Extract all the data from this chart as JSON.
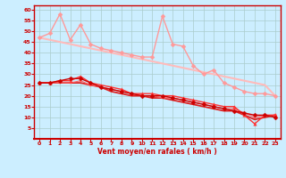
{
  "title": "",
  "xlabel": "Vent moyen/en rafales ( km/h )",
  "ylabel": "",
  "bg_color": "#cceeff",
  "grid_color": "#aacccc",
  "xlim": [
    -0.5,
    23.5
  ],
  "ylim": [
    0,
    62
  ],
  "yticks": [
    5,
    10,
    15,
    20,
    25,
    30,
    35,
    40,
    45,
    50,
    55,
    60
  ],
  "xticks": [
    0,
    1,
    2,
    3,
    4,
    5,
    6,
    7,
    8,
    9,
    10,
    11,
    12,
    13,
    14,
    15,
    16,
    17,
    18,
    19,
    20,
    21,
    22,
    23
  ],
  "series": [
    {
      "x": [
        0,
        1,
        2,
        3,
        4,
        5,
        6,
        7,
        8,
        9,
        10,
        11,
        12,
        13,
        14,
        15,
        16,
        17,
        18,
        19,
        20,
        21,
        22,
        23
      ],
      "y": [
        47,
        49,
        58,
        46,
        53,
        44,
        42,
        41,
        40,
        39,
        38,
        38,
        57,
        44,
        43,
        34,
        30,
        32,
        26,
        24,
        22,
        21,
        21,
        20
      ],
      "color": "#ff9999",
      "marker": "D",
      "markersize": 2.5,
      "linewidth": 1.0,
      "zorder": 3
    },
    {
      "x": [
        0,
        1,
        2,
        3,
        4,
        5,
        6,
        7,
        8,
        9,
        10,
        11,
        12,
        13,
        14,
        15,
        16,
        17,
        18,
        19,
        20,
        21,
        22,
        23
      ],
      "y": [
        47,
        46,
        45,
        44,
        43,
        42,
        41,
        40,
        39,
        38,
        37,
        36,
        35,
        34,
        33,
        32,
        31,
        30,
        29,
        28,
        27,
        26,
        25,
        20
      ],
      "color": "#ffbbbb",
      "marker": null,
      "markersize": 0,
      "linewidth": 1.5,
      "zorder": 2
    },
    {
      "x": [
        0,
        1,
        2,
        3,
        4,
        5,
        6,
        7,
        8,
        9,
        10,
        11,
        12,
        13,
        14,
        15,
        16,
        17,
        18,
        19,
        20,
        21,
        22,
        23
      ],
      "y": [
        26,
        26,
        27,
        27,
        29,
        26,
        25,
        24,
        23,
        21,
        21,
        21,
        20,
        20,
        19,
        18,
        17,
        16,
        15,
        15,
        11,
        7,
        11,
        11
      ],
      "color": "#ff3333",
      "marker": "^",
      "markersize": 2.5,
      "linewidth": 1.0,
      "zorder": 4
    },
    {
      "x": [
        0,
        1,
        2,
        3,
        4,
        5,
        6,
        7,
        8,
        9,
        10,
        11,
        12,
        13,
        14,
        15,
        16,
        17,
        18,
        19,
        20,
        21,
        22,
        23
      ],
      "y": [
        26,
        26,
        27,
        28,
        28,
        26,
        24,
        23,
        22,
        21,
        20,
        20,
        20,
        19,
        18,
        17,
        16,
        15,
        14,
        13,
        12,
        11,
        11,
        10
      ],
      "color": "#cc0000",
      "marker": "D",
      "markersize": 2.5,
      "linewidth": 1.0,
      "zorder": 4
    },
    {
      "x": [
        0,
        1,
        2,
        3,
        4,
        5,
        6,
        7,
        8,
        9,
        10,
        11,
        12,
        13,
        14,
        15,
        16,
        17,
        18,
        19,
        20,
        21,
        22,
        23
      ],
      "y": [
        26,
        26,
        26,
        26,
        27,
        25,
        24,
        23,
        22,
        21,
        20,
        20,
        19,
        19,
        18,
        17,
        16,
        15,
        14,
        14,
        12,
        10,
        11,
        11
      ],
      "color": "#ff6666",
      "marker": "s",
      "markersize": 2.0,
      "linewidth": 0.8,
      "zorder": 3
    },
    {
      "x": [
        0,
        1,
        2,
        3,
        4,
        5,
        6,
        7,
        8,
        9,
        10,
        11,
        12,
        13,
        14,
        15,
        16,
        17,
        18,
        19,
        20,
        21,
        22,
        23
      ],
      "y": [
        26,
        26,
        26,
        26,
        26,
        25,
        24,
        22,
        21,
        20,
        20,
        19,
        19,
        18,
        17,
        16,
        15,
        14,
        13,
        13,
        11,
        9,
        10,
        11
      ],
      "color": "#dd2222",
      "marker": null,
      "markersize": 0,
      "linewidth": 1.3,
      "zorder": 2
    }
  ]
}
